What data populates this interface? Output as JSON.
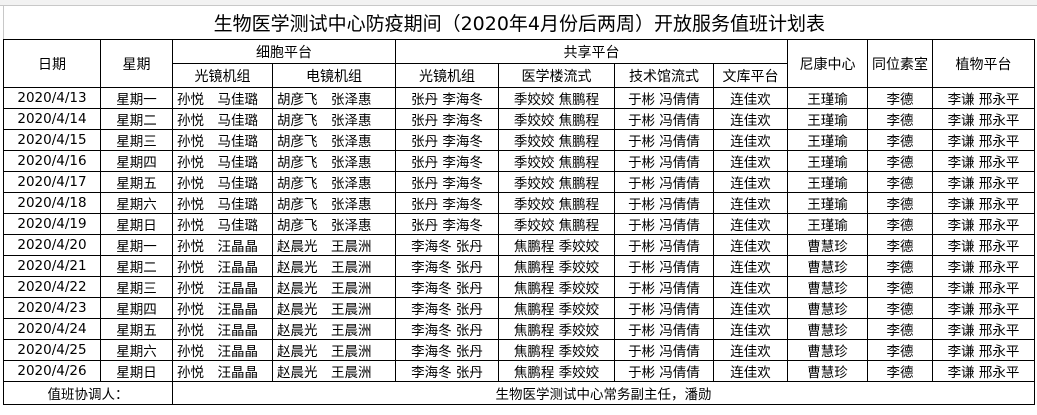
{
  "title": "生物医学测试中心防疫期间（2020年4月份后两周）开放服务值班计划表",
  "headers": {
    "date": "日期",
    "weekday": "星期",
    "cell_platform": "细胞平台",
    "cell_light": "光镜机组",
    "cell_em": "电镜机组",
    "shared_platform": "共享平台",
    "shared_light": "光镜机组",
    "med_flow": "医学楼流式",
    "tech_flow": "技术馆流式",
    "library": "文库平台",
    "nikon": "尼康中心",
    "isotope": "同位素室",
    "plant": "植物平台"
  },
  "rows": [
    [
      "2020/4/13",
      "星期一",
      "孙悦　马佳璐",
      "胡彦飞　张泽惠",
      "张丹 李海冬",
      "季姣姣 焦鹏程",
      "于彬 冯倩倩",
      "连佳欢",
      "王瑾瑜",
      "李德",
      "李谦 邢永平"
    ],
    [
      "2020/4/14",
      "星期二",
      "孙悦　马佳璐",
      "胡彦飞　张泽惠",
      "张丹 李海冬",
      "季姣姣 焦鹏程",
      "于彬 冯倩倩",
      "连佳欢",
      "王瑾瑜",
      "李德",
      "李谦 邢永平"
    ],
    [
      "2020/4/15",
      "星期三",
      "孙悦　马佳璐",
      "胡彦飞　张泽惠",
      "张丹 李海冬",
      "季姣姣 焦鹏程",
      "于彬 冯倩倩",
      "连佳欢",
      "王瑾瑜",
      "李德",
      "李谦 邢永平"
    ],
    [
      "2020/4/16",
      "星期四",
      "孙悦　马佳璐",
      "胡彦飞　张泽惠",
      "张丹 李海冬",
      "季姣姣 焦鹏程",
      "于彬 冯倩倩",
      "连佳欢",
      "王瑾瑜",
      "李德",
      "李谦 邢永平"
    ],
    [
      "2020/4/17",
      "星期五",
      "孙悦　马佳璐",
      "胡彦飞　张泽惠",
      "张丹 李海冬",
      "季姣姣 焦鹏程",
      "于彬 冯倩倩",
      "连佳欢",
      "王瑾瑜",
      "李德",
      "李谦 邢永平"
    ],
    [
      "2020/4/18",
      "星期六",
      "孙悦　马佳璐",
      "胡彦飞　张泽惠",
      "张丹 李海冬",
      "季姣姣 焦鹏程",
      "于彬 冯倩倩",
      "连佳欢",
      "王瑾瑜",
      "李德",
      "李谦 邢永平"
    ],
    [
      "2020/4/19",
      "星期日",
      "孙悦　马佳璐",
      "胡彦飞　张泽惠",
      "张丹 李海冬",
      "季姣姣 焦鹏程",
      "于彬 冯倩倩",
      "连佳欢",
      "王瑾瑜",
      "李德",
      "李谦 邢永平"
    ],
    [
      "2020/4/20",
      "星期一",
      "孙悦　汪晶晶",
      "赵晨光　王晨洲",
      "李海冬 张丹",
      "焦鹏程 季姣姣",
      "于彬 冯倩倩",
      "连佳欢",
      "曹慧珍",
      "李德",
      "李谦 邢永平"
    ],
    [
      "2020/4/21",
      "星期二",
      "孙悦　汪晶晶",
      "赵晨光　王晨洲",
      "李海冬 张丹",
      "焦鹏程 季姣姣",
      "于彬 冯倩倩",
      "连佳欢",
      "曹慧珍",
      "李德",
      "李谦 邢永平"
    ],
    [
      "2020/4/22",
      "星期三",
      "孙悦　汪晶晶",
      "赵晨光　王晨洲",
      "李海冬 张丹",
      "焦鹏程 季姣姣",
      "于彬 冯倩倩",
      "连佳欢",
      "曹慧珍",
      "李德",
      "李谦 邢永平"
    ],
    [
      "2020/4/23",
      "星期四",
      "孙悦　汪晶晶",
      "赵晨光　王晨洲",
      "李海冬 张丹",
      "焦鹏程 季姣姣",
      "于彬 冯倩倩",
      "连佳欢",
      "曹慧珍",
      "李德",
      "李谦 邢永平"
    ],
    [
      "2020/4/24",
      "星期五",
      "孙悦　汪晶晶",
      "赵晨光　王晨洲",
      "李海冬 张丹",
      "焦鹏程 季姣姣",
      "于彬 冯倩倩",
      "连佳欢",
      "曹慧珍",
      "李德",
      "李谦 邢永平"
    ],
    [
      "2020/4/25",
      "星期六",
      "孙悦　汪晶晶",
      "赵晨光　王晨洲",
      "李海冬 张丹",
      "焦鹏程 季姣姣",
      "于彬 冯倩倩",
      "连佳欢",
      "曹慧珍",
      "李德",
      "李谦 邢永平"
    ],
    [
      "2020/4/26",
      "星期日",
      "孙悦　汪晶晶",
      "赵晨光　王晨洲",
      "李海冬 张丹",
      "焦鹏程 季姣姣",
      "于彬 冯倩倩",
      "连佳欢",
      "曹慧珍",
      "李德",
      "李谦 邢永平"
    ]
  ],
  "footer": {
    "label": "值班协调人：",
    "value": "生物医学测试中心常务副主任，潘勋"
  }
}
